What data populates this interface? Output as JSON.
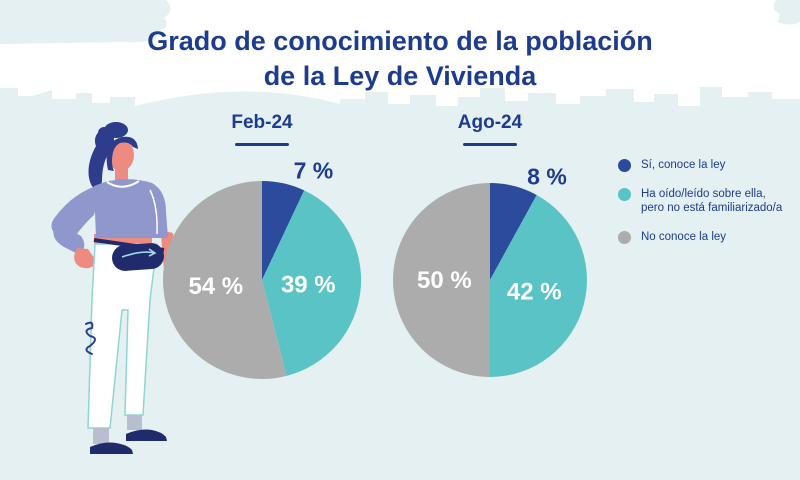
{
  "title": {
    "line1": "Grado de conocimiento de la población",
    "line2": "de la Ley de Vivienda"
  },
  "legend": {
    "items": [
      {
        "label_lines": [
          "Sí, conoce la ley"
        ],
        "color": "#2c4b9d"
      },
      {
        "label_lines": [
          "Ha oído/leído sobre ella,",
          "pero no está familiarizado/a"
        ],
        "color": "#5ac3c5"
      },
      {
        "label_lines": [
          "No conoce la ley"
        ],
        "color": "#acacac"
      }
    ]
  },
  "chart_data": [
    {
      "type": "pie",
      "title": "Feb-24",
      "categories": [
        "Sí, conoce la ley",
        "Ha oído/leído sobre ella, pero no está familiarizado/a",
        "No conoce la ley"
      ],
      "values": [
        7,
        39,
        54
      ],
      "display_labels": [
        "7 %",
        "39 %",
        "54 %"
      ],
      "colors": [
        "#2c4b9d",
        "#5ac3c5",
        "#acacac"
      ],
      "start_angle_deg": 0,
      "direction": "clockwise"
    },
    {
      "type": "pie",
      "title": "Ago-24",
      "categories": [
        "Sí, conoce la ley",
        "Ha oído/leído sobre ella, pero no está familiarizado/a",
        "No conoce la ley"
      ],
      "values": [
        8,
        42,
        50
      ],
      "display_labels": [
        "8 %",
        "42 %",
        "50 %"
      ],
      "colors": [
        "#2c4b9d",
        "#5ac3c5",
        "#acacac"
      ],
      "start_angle_deg": 0,
      "direction": "clockwise"
    }
  ],
  "palette": {
    "navy_text": "#1e3c8f",
    "pie_blue": "#2c4b9d",
    "pie_teal": "#5ac3c5",
    "pie_gray": "#acacac",
    "background_blue": "#e4f0f2"
  }
}
